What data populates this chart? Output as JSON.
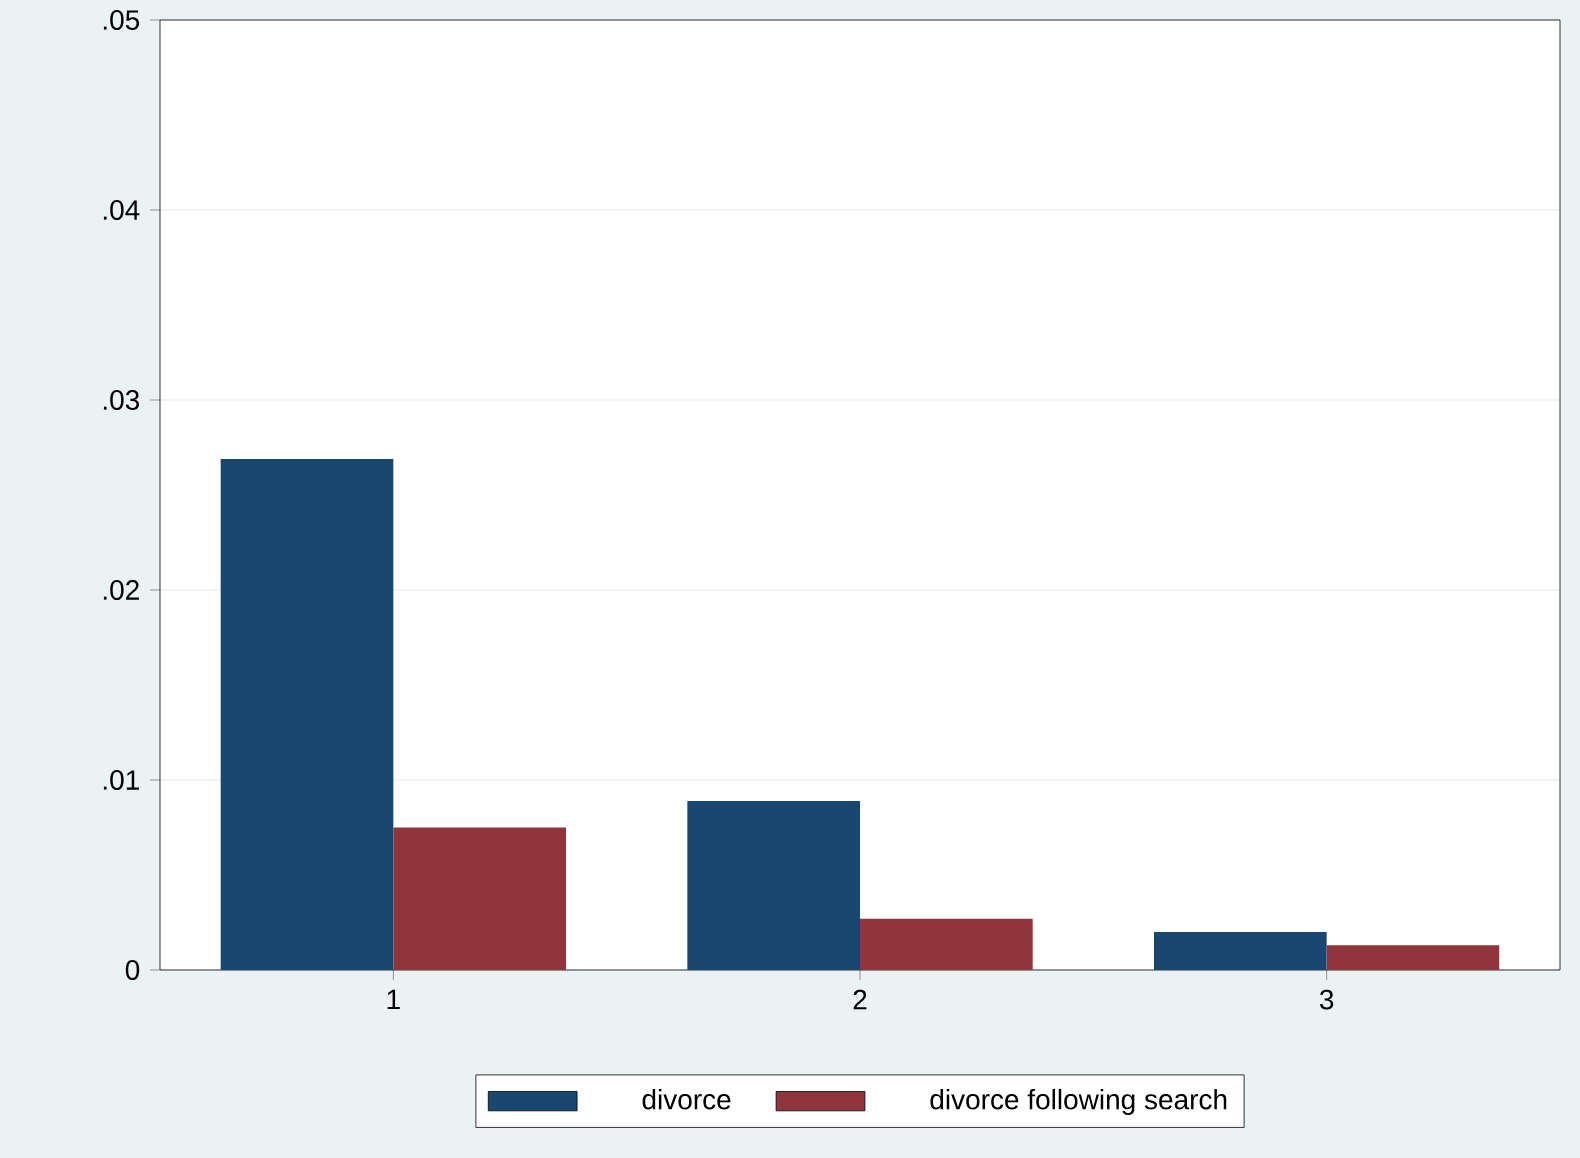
{
  "chart_data": {
    "type": "bar",
    "categories": [
      "1",
      "2",
      "3"
    ],
    "series": [
      {
        "name": "divorce",
        "color": "#1a476f",
        "values": [
          0.0269,
          0.0089,
          0.002
        ]
      },
      {
        "name": "divorce following search",
        "color": "#90353b",
        "values": [
          0.0075,
          0.0027,
          0.0013
        ]
      }
    ],
    "ylim": [
      0,
      0.05
    ],
    "yticks": [
      0,
      {
        "value": 0.01,
        "label": ".01"
      },
      {
        "value": 0.02,
        "label": ".02"
      },
      {
        "value": 0.03,
        "label": ".03"
      },
      {
        "value": 0.04,
        "label": ".04"
      },
      {
        "value": 0.05,
        "label": ".05"
      }
    ],
    "grid": "y",
    "legend": "bottom"
  }
}
